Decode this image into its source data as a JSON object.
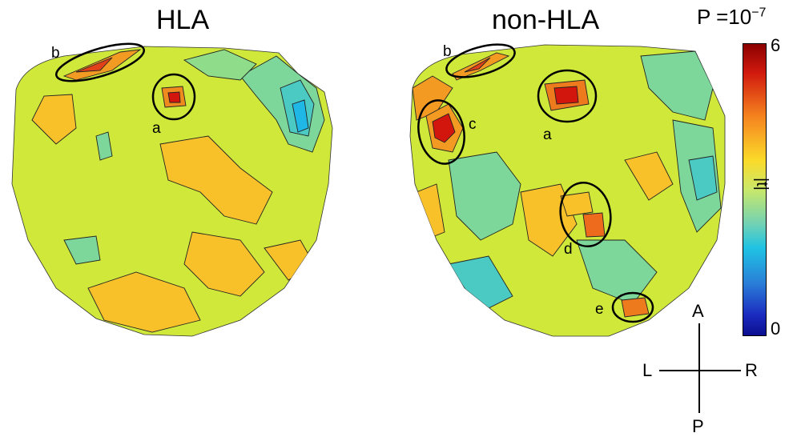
{
  "panels": [
    {
      "title": "HLA",
      "labels": [
        "a",
        "b"
      ]
    },
    {
      "title": "non-HLA",
      "labels": [
        "a",
        "b",
        "c",
        "d",
        "e"
      ]
    }
  ],
  "colorbar": {
    "title_base": "P =10",
    "title_exp": "−7",
    "max_label": "6",
    "min_label": "0",
    "axis_label": "|t|",
    "colors": [
      "#8b0000",
      "#d11a0e",
      "#f5841f",
      "#fbdb2a",
      "#c9e86a",
      "#6fd1b5",
      "#1fc3e3",
      "#2a7fd8",
      "#1b2bbf",
      "#0b0f8f"
    ]
  },
  "compass": {
    "anterior": "A",
    "posterior": "P",
    "left": "L",
    "right": "R"
  }
}
